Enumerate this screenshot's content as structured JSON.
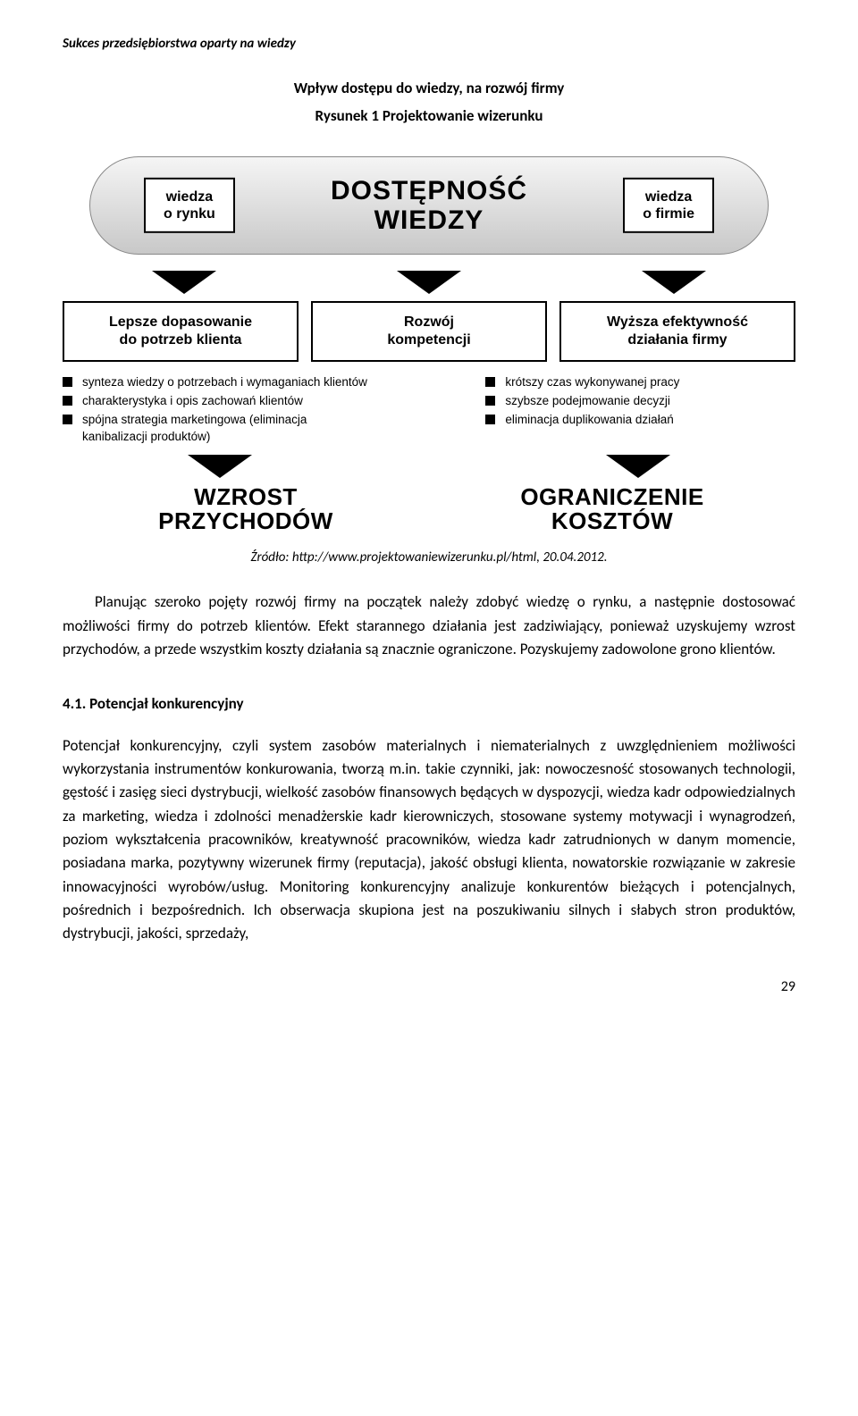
{
  "running_header": "Sukces przedsiębiorstwa oparty na wiedzy",
  "section_title": "Wpływ dostępu do wiedzy, na rozwój firmy",
  "figure_caption": "Rysunek 1 Projektowanie wizerunku",
  "diagram": {
    "main_title_line1": "DOSTĘPNOŚĆ",
    "main_title_line2": "WIEDZY",
    "side_left_line1": "wiedza",
    "side_left_line2": "o rynku",
    "side_right_line1": "wiedza",
    "side_right_line2": "o firmie",
    "mid": {
      "left_line1": "Lepsze dopasowanie",
      "left_line2": "do potrzeb klienta",
      "center_line1": "Rozwój",
      "center_line2": "kompetencji",
      "right_line1": "Wyższa efektywność",
      "right_line2": "działania firmy"
    },
    "bullets_left": [
      "synteza wiedzy o potrzebach i wymaganiach klientów",
      "charakterystyka i opis zachowań klientów",
      "spójna strategia marketingowa (eliminacja kanibalizacji produktów)"
    ],
    "bullets_right": [
      "krótszy czas wykonywanej pracy",
      "szybsze podejmowanie decyzji",
      "eliminacja duplikowania działań"
    ],
    "bottom_left_line1": "WZROST",
    "bottom_left_line2": "PRZYCHODÓW",
    "bottom_right_line1": "OGRANICZENIE",
    "bottom_right_line2": "KOSZTÓW"
  },
  "source": "Źródło: http://www.projektowaniewizerunku.pl/html, 20.04.2012.",
  "paragraph1": "Planując szeroko pojęty rozwój firmy na początek należy zdobyć wiedzę o rynku, a następnie dostosować możliwości firmy do potrzeb klientów. Efekt starannego działania jest zadziwiający, ponieważ uzyskujemy wzrost przychodów, a przede wszystkim koszty działania są znacznie ograniczone. Pozyskujemy zadowolone grono klientów.",
  "subheading": "4.1. Potencjał konkurencyjny",
  "paragraph2": "Potencjał konkurencyjny, czyli system zasobów materialnych i niematerialnych z uwzględnieniem możliwości wykorzystania instrumentów konkurowania, tworzą m.in. takie czynniki, jak: nowoczesność stosowanych technologii, gęstość i zasięg sieci dystrybucji, wielkość zasobów finansowych będących w dyspozycji, wiedza kadr odpowiedzialnych za marketing, wiedza i zdolności menadżerskie kadr kierowniczych, stosowane systemy motywacji i wynagrodzeń, poziom wykształcenia pracowników, kreatywność pracowników, wiedza kadr zatrudnionych w danym momencie, posiadana marka, pozytywny wizerunek firmy (reputacja), jakość obsługi klienta, nowatorskie rozwiązanie w zakresie innowacyjności wyrobów/usług. Monitoring konkurencyjny analizuje konkurentów bieżących i potencjalnych, pośrednich i bezpośrednich. Ich obserwacja skupiona jest na poszukiwaniu silnych i słabych stron produktów, dystrybucji, jakości, sprzedaży,",
  "page_number": "29"
}
